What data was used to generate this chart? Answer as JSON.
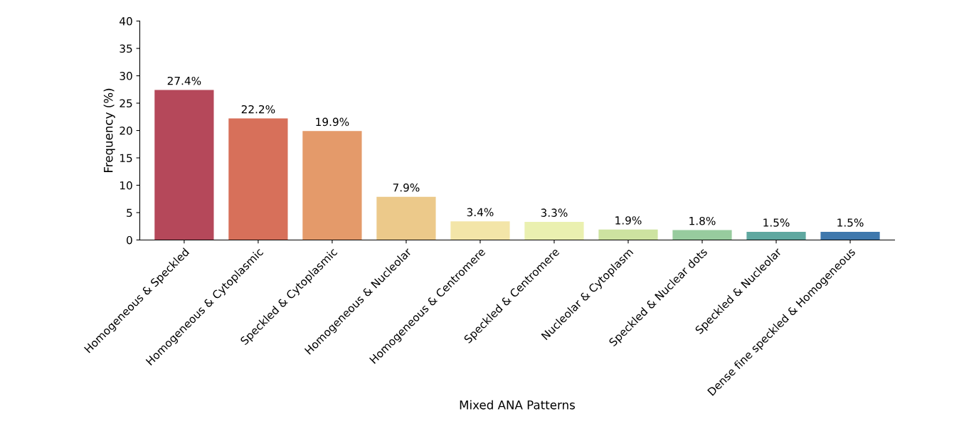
{
  "chart_data": {
    "type": "bar",
    "xlabel": "Mixed ANA Patterns",
    "ylabel": "Frequency (%)",
    "categories": [
      "Homogeneous & Speckled",
      "Homogeneous & Cytoplasmic",
      "Speckled & Cytoplasmic",
      "Homogeneous & Nucleolar",
      "Homogeneous & Centromere",
      "Speckled & Centromere",
      "Nucleolar & Cytoplasm",
      "Speckled & Nuclear dots",
      "Speckled & Nucleolar",
      "Dense fine speckled & Homogeneous"
    ],
    "values": [
      27.4,
      22.2,
      19.9,
      7.9,
      3.4,
      3.3,
      1.9,
      1.8,
      1.5,
      1.5
    ],
    "value_labels": [
      "27.4%",
      "22.2%",
      "19.9%",
      "7.9%",
      "3.4%",
      "3.3%",
      "1.9%",
      "1.8%",
      "1.5%",
      "1.5%"
    ],
    "colors": [
      "#b5485a",
      "#d7705a",
      "#e49a6a",
      "#ecc98a",
      "#f3e5a8",
      "#eaf0b0",
      "#cde3a0",
      "#97cb9e",
      "#5fa8a0",
      "#3f78ad"
    ],
    "ylim": [
      0,
      40
    ],
    "yticks": [
      0,
      5,
      10,
      15,
      20,
      25,
      30,
      35,
      40
    ],
    "grid": false
  }
}
